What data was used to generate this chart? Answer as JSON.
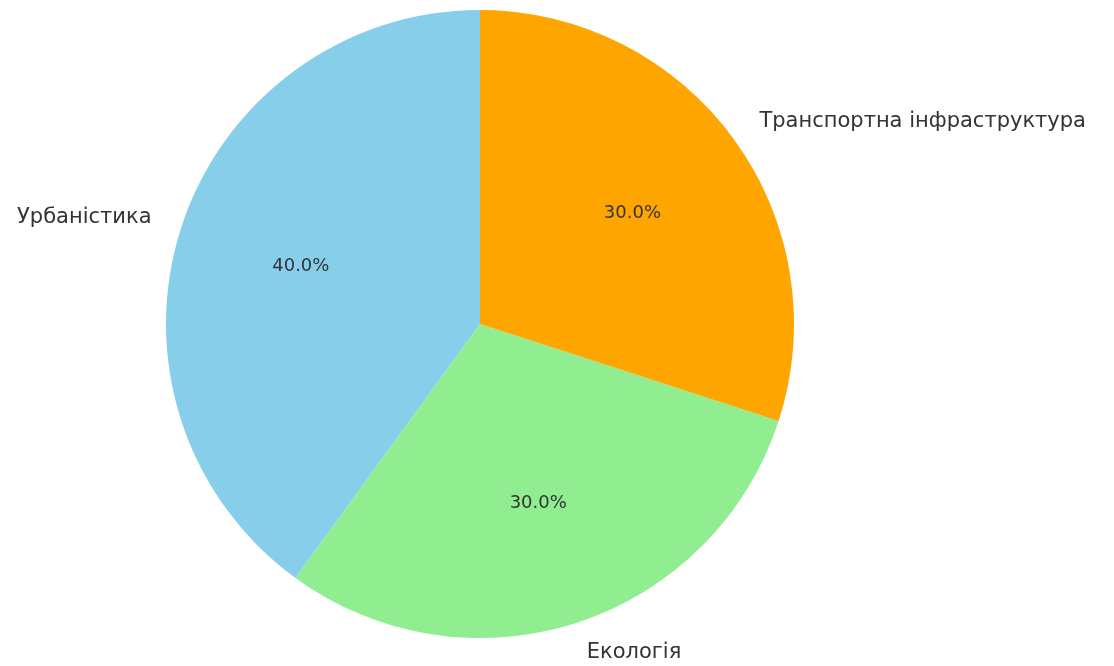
{
  "chart_data": {
    "type": "pie",
    "categories": [
      "Урбаністика",
      "Екологія",
      "Транспортна інфраструктура"
    ],
    "values": [
      40,
      30,
      30
    ],
    "colors": [
      "#87ceeb",
      "#90ee90",
      "#ffa500"
    ],
    "value_labels": [
      "40.0%",
      "30.0%",
      "30.0%"
    ]
  }
}
